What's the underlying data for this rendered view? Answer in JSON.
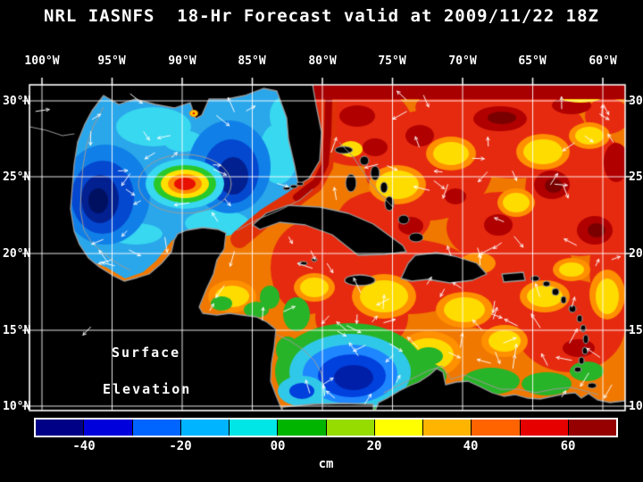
{
  "title": "NRL IASNFS  18-Hr Forecast valid at 2009/11/22 18Z",
  "axes": {
    "lon_labels": [
      "100°W",
      "95°W",
      "90°W",
      "85°W",
      "80°W",
      "75°W",
      "70°W",
      "65°W",
      "60°W"
    ],
    "lat_labels": [
      "30°N",
      "25°N",
      "20°N",
      "15°N",
      "10°N"
    ]
  },
  "map_overlay": {
    "line1": "Surface",
    "line2": "Elevation"
  },
  "colorbar": {
    "unit": "cm",
    "min": -50,
    "max": 70,
    "tick_labels": [
      "-40",
      "-20",
      "00",
      "20",
      "40",
      "60"
    ],
    "tick_values": [
      -40,
      -20,
      0,
      20,
      40,
      60
    ],
    "segments": [
      "#000086",
      "#0000dc",
      "#0064ff",
      "#00b4ff",
      "#00e6e6",
      "#00b400",
      "#96dc00",
      "#ffff00",
      "#ffb400",
      "#ff6400",
      "#e60000",
      "#960000"
    ]
  },
  "chart_data": {
    "type": "heatmap",
    "title": "NRL IASNFS 18-Hr Forecast valid at 2009/11/22 18Z",
    "field": "Surface Elevation",
    "unit": "cm",
    "colorbar_ticks": [
      -40,
      -20,
      0,
      20,
      40,
      60
    ],
    "colorbar_range": [
      -50,
      70
    ],
    "lon_range_deg_w": [
      100,
      60
    ],
    "lat_range_deg_n": [
      10,
      30
    ],
    "regions": [
      {
        "name": "Gulf of Mexico interior",
        "approx_value_cm": -25
      },
      {
        "name": "Warm eddy near 90W 25N",
        "approx_value_cm": 45
      },
      {
        "name": "Atlantic / central Caribbean",
        "approx_value_cm": 45
      },
      {
        "name": "SW Caribbean low near 80W 13N",
        "approx_value_cm": -30
      }
    ]
  }
}
